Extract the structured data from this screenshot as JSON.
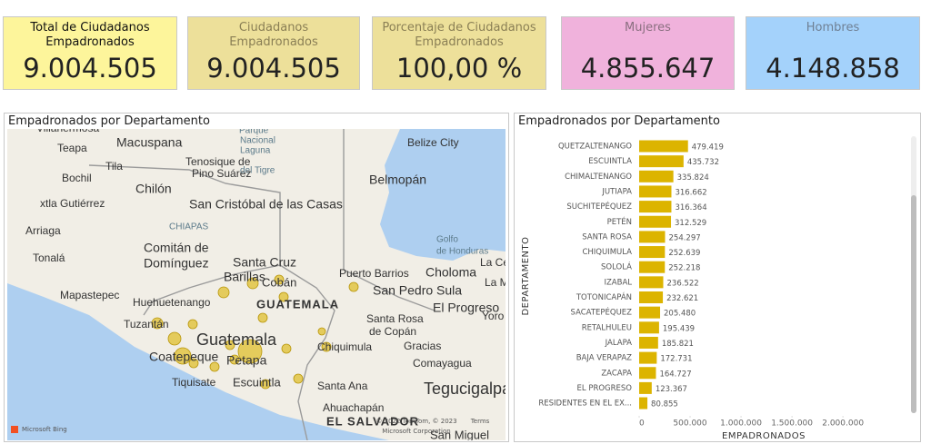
{
  "cards": [
    {
      "label": "Total de Ciudadanos Empadronados",
      "value": "9.004.505"
    },
    {
      "label": "Ciudadanos Empadronados",
      "value": "9.004.505"
    },
    {
      "label": "Porcentaje de Ciudadanos Empadronados",
      "value": "100,00 %"
    },
    {
      "label": "Mujeres",
      "value": "4.855.647"
    },
    {
      "label": "Hombres",
      "value": "4.148.858"
    }
  ],
  "map": {
    "title": "Empadronados por Departamento",
    "labels": [
      "Villahermosa",
      "Macuspana",
      "Teapa",
      "Tila",
      "Tenosique de",
      "Pino Suárez",
      "Bochil",
      "Chilón",
      "Belize City",
      "Belmopán",
      "xtla Gutiérrez",
      "San Cristóbal de las Casas",
      "CHIAPAS",
      "Arriaga",
      "Comitán de",
      "Domínguez",
      "Tonalá",
      "Golfo",
      "de Honduras",
      "Santa Cruz",
      "Barillas",
      "Cobán",
      "Puerto Barrios",
      "Choloma",
      "San Pedro Sula",
      "Mapastepec",
      "Huehuetenango",
      "GUATEMALA",
      "El Progreso",
      "Tuzantán",
      "Santa Rosa",
      "de Copán",
      "Guatemala",
      "Chiquimula",
      "Gracias",
      "Coatepeque",
      "Petapa",
      "Comayagua",
      "Tiquisate",
      "Escuintla",
      "Santa Ana",
      "Tegucigalpa",
      "Ahuachapán",
      "EL SALVADOR",
      "Parque",
      "Nacional",
      "Laguna",
      "del Tigre",
      "San Miguel",
      "La Ce",
      "La M",
      "Yoro"
    ],
    "attribution": [
      "Microsoft Bing",
      "© 2022 TomTom, © 2023",
      "Microsoft Corporation",
      "Terms"
    ]
  },
  "chart_data": {
    "type": "hbar",
    "title": "Empadronados por Departamento",
    "categories": [
      "QUETZALTENANGO",
      "ESCUINTLA",
      "CHIMALTENANGO",
      "JUTIAPA",
      "SUCHITEPÉQUEZ",
      "PETÉN",
      "SANTA ROSA",
      "CHIQUIMULA",
      "SOLOLÁ",
      "IZABAL",
      "TOTONICAPÁN",
      "SACATEPÉQUEZ",
      "RETALHULEU",
      "JALAPA",
      "BAJA VERAPAZ",
      "ZACAPA",
      "EL PROGRESO",
      "RESIDENTES EN EL EX..."
    ],
    "values": [
      479419,
      435732,
      335824,
      316662,
      316364,
      312529,
      254297,
      252639,
      252218,
      236522,
      232621,
      205480,
      195439,
      185821,
      172731,
      164727,
      123367,
      80855
    ],
    "value_labels": [
      "479.419",
      "435.732",
      "335.824",
      "316.662",
      "316.364",
      "312.529",
      "254.297",
      "252.639",
      "252.218",
      "236.522",
      "232.621",
      "205.480",
      "195.439",
      "185.821",
      "172.731",
      "164.727",
      "123.367",
      "80.855"
    ],
    "color": "#dcb400",
    "xlim": [
      0,
      2650000
    ],
    "xticks": [
      0,
      {
        "value": 500000,
        "label": "500.000"
      },
      {
        "value": 1000000,
        "label": "1.000.000"
      },
      {
        "value": 1500000,
        "label": "1.500.000"
      },
      {
        "value": 2000000,
        "label": "2.000.000"
      }
    ],
    "xlabel": "EMPADRONADOS",
    "ylabel": "DEPARTAMENTO"
  }
}
